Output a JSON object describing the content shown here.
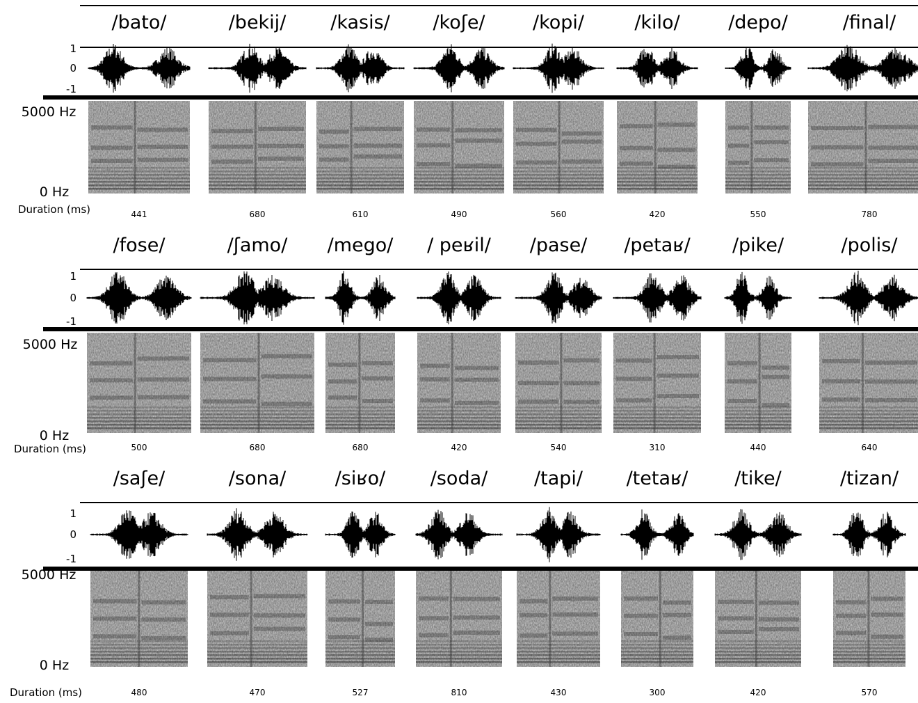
{
  "rows": [
    {
      "words": [
        "/bato/",
        "/bekij/",
        "/kasis/",
        "/koʃe/",
        "/kopi/",
        "/kilo/",
        "/depo/",
        "/final/"
      ],
      "durations": [
        441,
        680,
        610,
        490,
        560,
        420,
        550,
        780
      ],
      "amplitude_labels": [
        "1",
        "0",
        "-1"
      ],
      "freq_top": "5000 Hz",
      "freq_bottom": "0 Hz",
      "duration_label": "Duration (ms)"
    },
    {
      "words": [
        "/fose/",
        "/ʃamo/",
        "/mego/",
        "/ peʁil/",
        "/pase/",
        "/petaʁ/",
        "/pike/",
        "/polis/"
      ],
      "durations": [
        500,
        680,
        680,
        420,
        540,
        310,
        440,
        640
      ],
      "amplitude_labels": [
        "1",
        "0",
        "-1"
      ],
      "freq_top": "5000 Hz",
      "freq_bottom": "0 Hz",
      "duration_label": "Duration (ms)"
    },
    {
      "words": [
        "/saʃe/",
        "/sona/",
        "/siʁo/",
        "/soda/",
        "/tapi/",
        "/tetaʁ/",
        "/tike/",
        "/tizan/"
      ],
      "durations": [
        480,
        470,
        527,
        810,
        430,
        300,
        420,
        570
      ],
      "amplitude_labels": [
        "1",
        "0",
        "-1"
      ],
      "freq_top": "5000 Hz",
      "freq_bottom": "0 Hz",
      "duration_label": "Duration (ms)"
    }
  ]
}
